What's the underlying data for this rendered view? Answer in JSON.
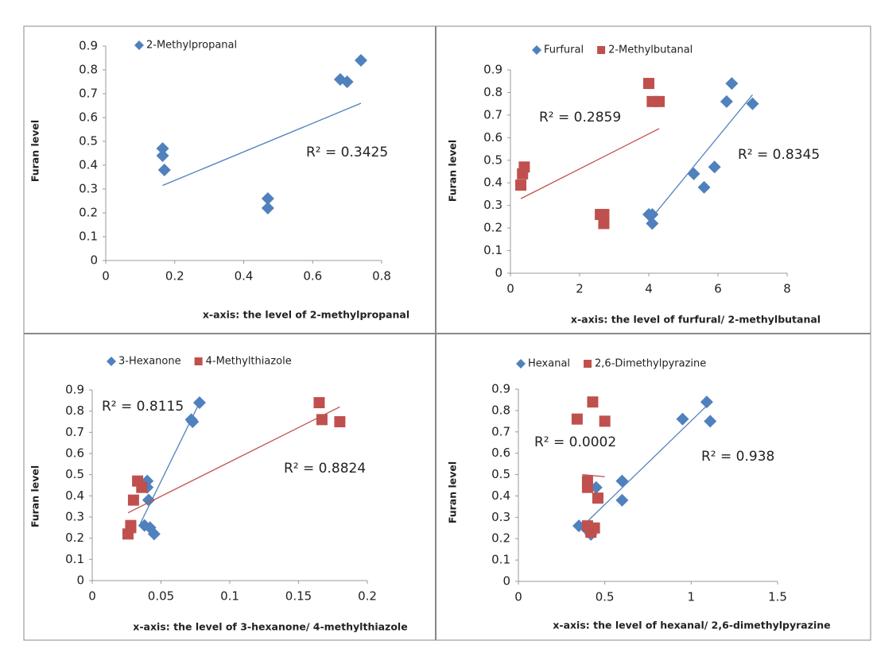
{
  "chart_data": [
    {
      "type": "scatter",
      "y_label": "Furan level",
      "x_label": "x-axis: the level of 2-methylpropanal",
      "xlim": [
        0,
        0.8
      ],
      "xticks": [
        0,
        0.2,
        0.4,
        0.6,
        0.8
      ],
      "ylim": [
        0,
        0.9
      ],
      "yticks": [
        0,
        0.1,
        0.2,
        0.3,
        0.4,
        0.5,
        0.6,
        0.7,
        0.8,
        0.9
      ],
      "series": [
        {
          "name": "2-Methylpropanal",
          "color": "#4f81bd",
          "marker": "diamond",
          "x": [
            0.165,
            0.165,
            0.17,
            0.47,
            0.47,
            0.68,
            0.7,
            0.74
          ],
          "values": [
            0.47,
            0.44,
            0.38,
            0.26,
            0.22,
            0.76,
            0.75,
            0.84
          ],
          "trendline": {
            "x": [
              0.165,
              0.74
            ],
            "y": [
              0.315,
              0.66
            ]
          },
          "r2_label": "R² = 0.3425"
        }
      ]
    },
    {
      "type": "scatter",
      "y_label": "Furan level",
      "x_label": "x-axis: the level of furfural/ 2-methylbutanal",
      "xlim": [
        0,
        8
      ],
      "xticks": [
        0,
        2,
        4,
        6,
        8
      ],
      "ylim": [
        0,
        0.9
      ],
      "yticks": [
        0,
        0.1,
        0.2,
        0.3,
        0.4,
        0.5,
        0.6,
        0.7,
        0.8,
        0.9
      ],
      "series": [
        {
          "name": "Furfural",
          "color": "#4f81bd",
          "marker": "diamond",
          "x": [
            6.4,
            6.25,
            7.0,
            5.9,
            5.3,
            5.6,
            4.0,
            4.1,
            4.1
          ],
          "values": [
            0.84,
            0.76,
            0.75,
            0.47,
            0.44,
            0.38,
            0.26,
            0.26,
            0.22
          ],
          "trendline": {
            "x": [
              4.0,
              7.0
            ],
            "y": [
              0.23,
              0.79
            ]
          },
          "r2_label": "R² = 0.8345"
        },
        {
          "name": "2-Methylbutanal",
          "color": "#c0504d",
          "marker": "square",
          "x": [
            4.0,
            4.1,
            4.3,
            0.4,
            0.35,
            0.3,
            2.6,
            2.7,
            2.7
          ],
          "values": [
            0.84,
            0.76,
            0.76,
            0.47,
            0.44,
            0.39,
            0.26,
            0.26,
            0.22
          ],
          "trendline": {
            "x": [
              0.3,
              4.3
            ],
            "y": [
              0.33,
              0.64
            ]
          },
          "r2_label": "R² = 0.2859"
        }
      ]
    },
    {
      "type": "scatter",
      "y_label": "Furan level",
      "x_label": "x-axis: the level of 3-hexanone/ 4-methylthiazole",
      "xlim": [
        0,
        0.2
      ],
      "xticks": [
        0,
        0.05,
        0.1,
        0.15,
        0.2
      ],
      "ylim": [
        0,
        0.9
      ],
      "yticks": [
        0,
        0.1,
        0.2,
        0.3,
        0.4,
        0.5,
        0.6,
        0.7,
        0.8,
        0.9
      ],
      "series": [
        {
          "name": "3-Hexanone",
          "color": "#4f81bd",
          "marker": "diamond",
          "x": [
            0.078,
            0.072,
            0.073,
            0.04,
            0.04,
            0.041,
            0.038,
            0.042,
            0.045
          ],
          "values": [
            0.84,
            0.76,
            0.75,
            0.47,
            0.44,
            0.38,
            0.26,
            0.25,
            0.22
          ],
          "trendline": {
            "x": [
              0.035,
              0.078
            ],
            "y": [
              0.27,
              0.84
            ]
          },
          "r2_label": "R² = 0.8115"
        },
        {
          "name": "4-Methylthiazole",
          "color": "#c0504d",
          "marker": "square",
          "x": [
            0.165,
            0.167,
            0.18,
            0.033,
            0.036,
            0.03,
            0.028,
            0.028,
            0.026
          ],
          "values": [
            0.84,
            0.76,
            0.75,
            0.47,
            0.44,
            0.38,
            0.26,
            0.25,
            0.22
          ],
          "trendline": {
            "x": [
              0.026,
              0.18
            ],
            "y": [
              0.32,
              0.82
            ]
          },
          "r2_label": "R² = 0.8824"
        }
      ]
    },
    {
      "type": "scatter",
      "y_label": "Furan level",
      "x_label": "x-axis: the level of hexanal/ 2,6-dimethylpyrazine",
      "xlim": [
        0,
        1.5
      ],
      "xticks": [
        0,
        0.5,
        1,
        1.5
      ],
      "ylim": [
        0,
        0.9
      ],
      "yticks": [
        0,
        0.1,
        0.2,
        0.3,
        0.4,
        0.5,
        0.6,
        0.7,
        0.8,
        0.9
      ],
      "series": [
        {
          "name": "Hexanal",
          "color": "#4f81bd",
          "marker": "diamond",
          "x": [
            1.09,
            0.95,
            1.11,
            0.6,
            0.45,
            0.6,
            0.35,
            0.4,
            0.42
          ],
          "values": [
            0.84,
            0.76,
            0.75,
            0.47,
            0.44,
            0.38,
            0.26,
            0.24,
            0.22
          ],
          "trendline": {
            "x": [
              0.36,
              1.1
            ],
            "y": [
              0.25,
              0.83
            ]
          },
          "r2_label": "R² = 0.938"
        },
        {
          "name": "2,6-Dimethylpyrazine",
          "color": "#c0504d",
          "marker": "square",
          "x": [
            0.43,
            0.34,
            0.5,
            0.4,
            0.4,
            0.46,
            0.4,
            0.44,
            0.42
          ],
          "values": [
            0.84,
            0.76,
            0.75,
            0.47,
            0.44,
            0.39,
            0.26,
            0.25,
            0.23
          ],
          "trendline": {
            "x": [
              0.37,
              0.5
            ],
            "y": [
              0.5,
              0.49
            ]
          },
          "r2_label": "R² = 0.0002"
        }
      ]
    }
  ]
}
